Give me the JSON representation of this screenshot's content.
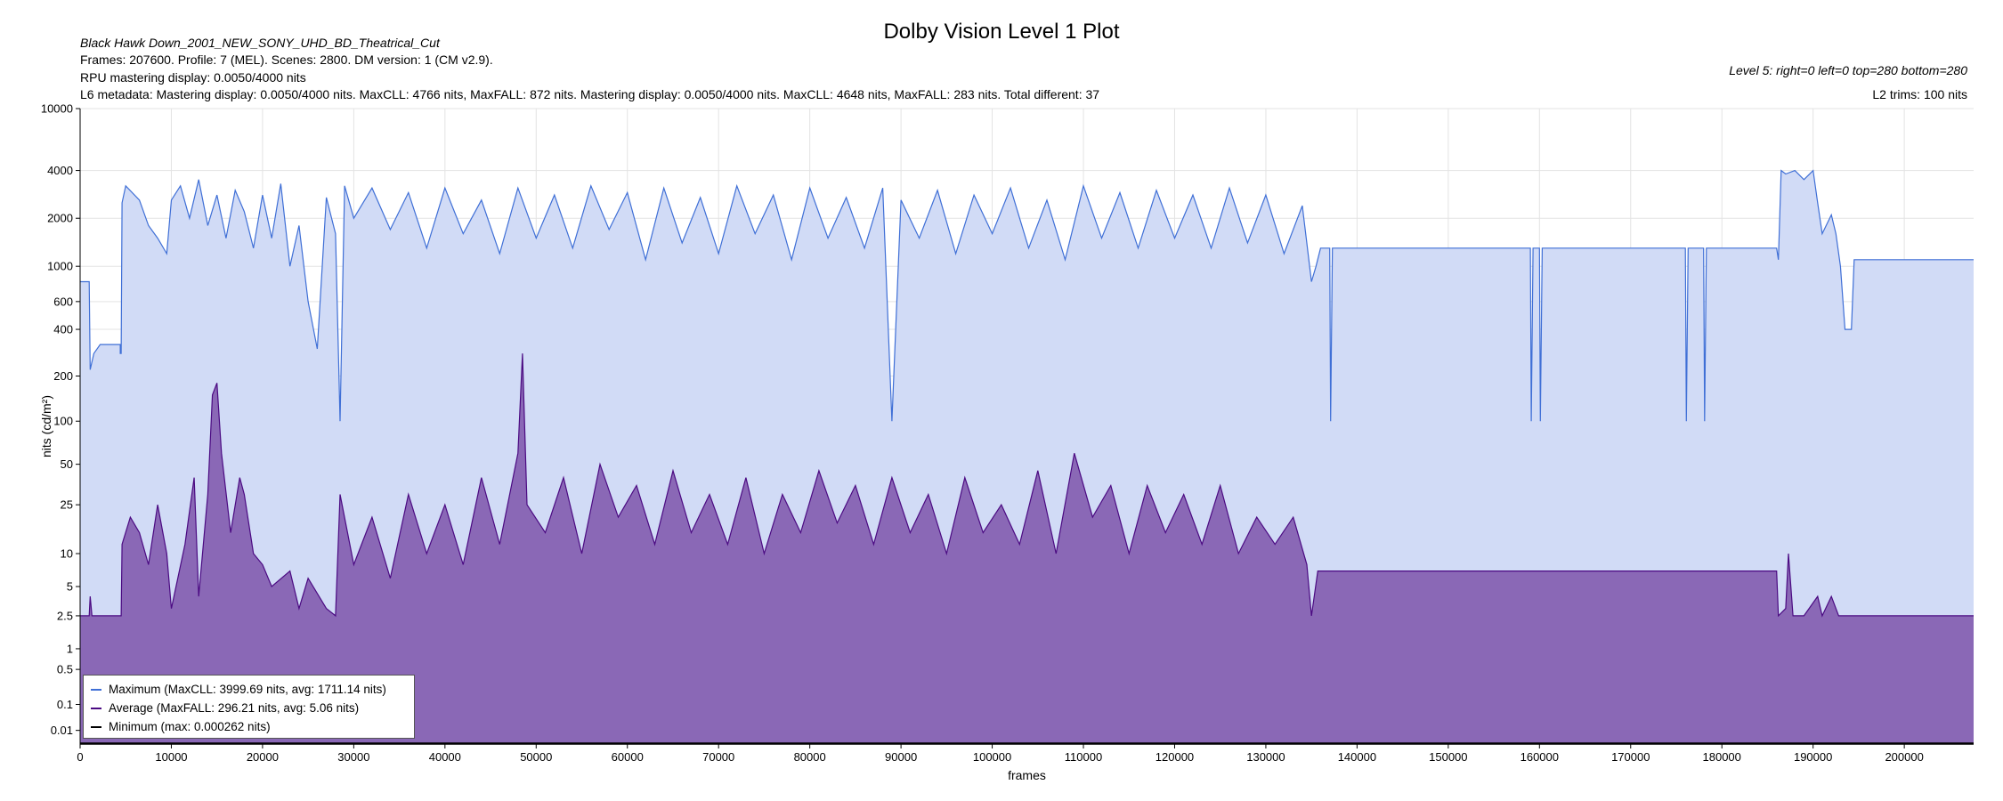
{
  "header": {
    "title": "Dolby Vision Level 1 Plot",
    "file_name": "Black Hawk Down_2001_NEW_SONY_UHD_BD_Theatrical_Cut",
    "frames_line": "Frames: 207600. Profile: 7 (MEL). Scenes: 2800. DM version: 1 (CM v2.9).",
    "rpu_line": "RPU mastering display: 0.0050/4000 nits",
    "l6_line": "L6 metadata: Mastering display: 0.0050/4000 nits. MaxCLL: 4766 nits, MaxFALL: 872 nits. Mastering display: 0.0050/4000 nits. MaxCLL: 4648 nits, MaxFALL: 283 nits. Total different: 37",
    "level5_line": "Level 5: right=0 left=0 top=280 bottom=280",
    "l2_line": "L2 trims: 100 nits"
  },
  "colors": {
    "max_line": "#3f6fd6",
    "max_fill": "#d1dbf6",
    "avg_line": "#4b0a82",
    "avg_fill": "#8a68b6",
    "min_line": "#000000",
    "grid": "#e3e3e3"
  },
  "legend": {
    "items": [
      {
        "label": "Maximum (MaxCLL: 3999.69 nits, avg: 1711.14 nits)",
        "color": "#3f6fd6"
      },
      {
        "label": "Average (MaxFALL: 296.21 nits, avg: 5.06 nits)",
        "color": "#4b0a82"
      },
      {
        "label": "Minimum (max: 0.000262 nits)",
        "color": "#000000"
      }
    ]
  },
  "chart_data": {
    "type": "area",
    "title": "Dolby Vision Level 1 Plot",
    "xlabel": "frames",
    "ylabel": "nits (cd/m²)",
    "xlim": [
      0,
      207600
    ],
    "y_scale": "pq",
    "y_ticks": [
      0.01,
      0.1,
      0.5,
      1,
      2.5,
      5,
      10,
      25,
      50,
      100,
      200,
      400,
      600,
      1000,
      2000,
      4000,
      10000
    ],
    "y_tick_labels": [
      "0.01",
      "0.1",
      "0.5",
      "1",
      "2.5",
      "5",
      "10",
      "25",
      "50",
      "100",
      "200",
      "400",
      "600",
      "1000",
      "2000",
      "4000",
      "10000"
    ],
    "x_ticks": [
      0,
      10000,
      20000,
      30000,
      40000,
      50000,
      60000,
      70000,
      80000,
      90000,
      100000,
      110000,
      120000,
      130000,
      140000,
      150000,
      160000,
      170000,
      180000,
      190000,
      200000
    ],
    "x_tick_labels": [
      "0",
      "10000",
      "20000",
      "30000",
      "40000",
      "50000",
      "60000",
      "70000",
      "80000",
      "90000",
      "100000",
      "110000",
      "120000",
      "130000",
      "140000",
      "150000",
      "160000",
      "170000",
      "180000",
      "190000",
      "200000"
    ],
    "grid": true,
    "legend_position": "bottom-left",
    "series": [
      {
        "name": "Maximum (MaxCLL: 3999.69 nits, avg: 1711.14 nits)",
        "points": [
          [
            0,
            800
          ],
          [
            1000,
            800
          ],
          [
            1100,
            220
          ],
          [
            1500,
            280
          ],
          [
            2200,
            320
          ],
          [
            4400,
            320
          ],
          [
            4400,
            280
          ],
          [
            4500,
            280
          ],
          [
            4600,
            2500
          ],
          [
            5000,
            3200
          ],
          [
            6500,
            2600
          ],
          [
            7500,
            1800
          ],
          [
            8500,
            1500
          ],
          [
            9500,
            1200
          ],
          [
            10000,
            2600
          ],
          [
            11000,
            3200
          ],
          [
            12000,
            2000
          ],
          [
            13000,
            3500
          ],
          [
            14000,
            1800
          ],
          [
            15000,
            2800
          ],
          [
            16000,
            1500
          ],
          [
            17000,
            3000
          ],
          [
            18000,
            2200
          ],
          [
            19000,
            1300
          ],
          [
            20000,
            2800
          ],
          [
            21000,
            1500
          ],
          [
            22000,
            3300
          ],
          [
            23000,
            1000
          ],
          [
            24000,
            1800
          ],
          [
            25000,
            600
          ],
          [
            26000,
            300
          ],
          [
            27000,
            2700
          ],
          [
            28000,
            1600
          ],
          [
            28500,
            100
          ],
          [
            29000,
            3200
          ],
          [
            30000,
            2000
          ],
          [
            32000,
            3100
          ],
          [
            34000,
            1700
          ],
          [
            36000,
            2900
          ],
          [
            38000,
            1300
          ],
          [
            40000,
            3100
          ],
          [
            42000,
            1600
          ],
          [
            44000,
            2600
          ],
          [
            46000,
            1200
          ],
          [
            48000,
            3100
          ],
          [
            50000,
            1500
          ],
          [
            52000,
            2800
          ],
          [
            54000,
            1300
          ],
          [
            56000,
            3200
          ],
          [
            58000,
            1700
          ],
          [
            60000,
            2900
          ],
          [
            62000,
            1100
          ],
          [
            64000,
            3100
          ],
          [
            66000,
            1400
          ],
          [
            68000,
            2700
          ],
          [
            70000,
            1200
          ],
          [
            72000,
            3200
          ],
          [
            74000,
            1600
          ],
          [
            76000,
            2800
          ],
          [
            78000,
            1100
          ],
          [
            80000,
            3100
          ],
          [
            82000,
            1500
          ],
          [
            84000,
            2700
          ],
          [
            86000,
            1300
          ],
          [
            88000,
            3100
          ],
          [
            89000,
            100
          ],
          [
            90000,
            2600
          ],
          [
            92000,
            1500
          ],
          [
            94000,
            3000
          ],
          [
            96000,
            1200
          ],
          [
            98000,
            2800
          ],
          [
            100000,
            1600
          ],
          [
            102000,
            3100
          ],
          [
            104000,
            1300
          ],
          [
            106000,
            2600
          ],
          [
            108000,
            1100
          ],
          [
            110000,
            3200
          ],
          [
            112000,
            1500
          ],
          [
            114000,
            2900
          ],
          [
            116000,
            1300
          ],
          [
            118000,
            3000
          ],
          [
            120000,
            1500
          ],
          [
            122000,
            2800
          ],
          [
            124000,
            1300
          ],
          [
            126000,
            3100
          ],
          [
            128000,
            1400
          ],
          [
            130000,
            2800
          ],
          [
            132000,
            1200
          ],
          [
            134000,
            2400
          ],
          [
            135000,
            800
          ],
          [
            135500,
            1000
          ],
          [
            136000,
            1300
          ],
          [
            137000,
            1300
          ],
          [
            137100,
            100
          ],
          [
            137300,
            1300
          ],
          [
            159000,
            1300
          ],
          [
            159100,
            100
          ],
          [
            159300,
            1300
          ],
          [
            160000,
            1300
          ],
          [
            160100,
            100
          ],
          [
            160300,
            1300
          ],
          [
            176000,
            1300
          ],
          [
            176100,
            100
          ],
          [
            176300,
            1300
          ],
          [
            178000,
            1300
          ],
          [
            178100,
            100
          ],
          [
            178300,
            1300
          ],
          [
            186000,
            1300
          ],
          [
            186200,
            1100
          ],
          [
            186500,
            4000
          ],
          [
            187000,
            3800
          ],
          [
            188000,
            4000
          ],
          [
            189000,
            3500
          ],
          [
            190000,
            4000
          ],
          [
            190500,
            2500
          ],
          [
            191000,
            1600
          ],
          [
            192000,
            2100
          ],
          [
            192500,
            1600
          ],
          [
            193000,
            1000
          ],
          [
            193500,
            400
          ],
          [
            194200,
            400
          ],
          [
            194500,
            1100
          ],
          [
            207600,
            1100
          ]
        ]
      },
      {
        "name": "Average (MaxFALL: 296.21 nits, avg: 5.06 nits)",
        "points": [
          [
            0,
            2.5
          ],
          [
            1000,
            2.5
          ],
          [
            1100,
            4
          ],
          [
            1300,
            2.5
          ],
          [
            4500,
            2.5
          ],
          [
            4600,
            12
          ],
          [
            5500,
            20
          ],
          [
            6500,
            15
          ],
          [
            7500,
            8
          ],
          [
            8500,
            25
          ],
          [
            9500,
            10
          ],
          [
            10000,
            3
          ],
          [
            11500,
            12
          ],
          [
            12500,
            40
          ],
          [
            13000,
            4
          ],
          [
            14000,
            30
          ],
          [
            14500,
            150
          ],
          [
            15000,
            180
          ],
          [
            15500,
            60
          ],
          [
            16500,
            15
          ],
          [
            17500,
            40
          ],
          [
            18000,
            30
          ],
          [
            19000,
            10
          ],
          [
            20000,
            8
          ],
          [
            21000,
            5
          ],
          [
            23000,
            7
          ],
          [
            24000,
            3
          ],
          [
            25000,
            6
          ],
          [
            27000,
            3
          ],
          [
            28000,
            2.5
          ],
          [
            28500,
            30
          ],
          [
            30000,
            8
          ],
          [
            32000,
            20
          ],
          [
            34000,
            6
          ],
          [
            36000,
            30
          ],
          [
            38000,
            10
          ],
          [
            40000,
            25
          ],
          [
            42000,
            8
          ],
          [
            44000,
            40
          ],
          [
            46000,
            12
          ],
          [
            48000,
            60
          ],
          [
            48500,
            280
          ],
          [
            49000,
            25
          ],
          [
            51000,
            15
          ],
          [
            53000,
            40
          ],
          [
            55000,
            10
          ],
          [
            57000,
            50
          ],
          [
            59000,
            20
          ],
          [
            61000,
            35
          ],
          [
            63000,
            12
          ],
          [
            65000,
            45
          ],
          [
            67000,
            15
          ],
          [
            69000,
            30
          ],
          [
            71000,
            12
          ],
          [
            73000,
            40
          ],
          [
            75000,
            10
          ],
          [
            77000,
            30
          ],
          [
            79000,
            15
          ],
          [
            81000,
            45
          ],
          [
            83000,
            18
          ],
          [
            85000,
            35
          ],
          [
            87000,
            12
          ],
          [
            89000,
            40
          ],
          [
            91000,
            15
          ],
          [
            93000,
            30
          ],
          [
            95000,
            10
          ],
          [
            97000,
            40
          ],
          [
            99000,
            15
          ],
          [
            101000,
            25
          ],
          [
            103000,
            12
          ],
          [
            105000,
            45
          ],
          [
            107000,
            10
          ],
          [
            109000,
            60
          ],
          [
            111000,
            20
          ],
          [
            113000,
            35
          ],
          [
            115000,
            10
          ],
          [
            117000,
            35
          ],
          [
            119000,
            15
          ],
          [
            121000,
            30
          ],
          [
            123000,
            12
          ],
          [
            125000,
            35
          ],
          [
            127000,
            10
          ],
          [
            129000,
            20
          ],
          [
            131000,
            12
          ],
          [
            133000,
            20
          ],
          [
            134500,
            8
          ],
          [
            135000,
            2.5
          ],
          [
            135700,
            7
          ],
          [
            137000,
            7
          ],
          [
            186000,
            7
          ],
          [
            186200,
            2.5
          ],
          [
            187000,
            3
          ],
          [
            187300,
            10
          ],
          [
            187800,
            2.5
          ],
          [
            189000,
            2.5
          ],
          [
            190500,
            4
          ],
          [
            191000,
            2.5
          ],
          [
            192000,
            4
          ],
          [
            192800,
            2.5
          ],
          [
            207600,
            2.5
          ]
        ]
      },
      {
        "name": "Minimum (max: 0.000262 nits)",
        "points": [
          [
            0,
            0.0001
          ],
          [
            207600,
            0.0001
          ]
        ]
      }
    ]
  }
}
